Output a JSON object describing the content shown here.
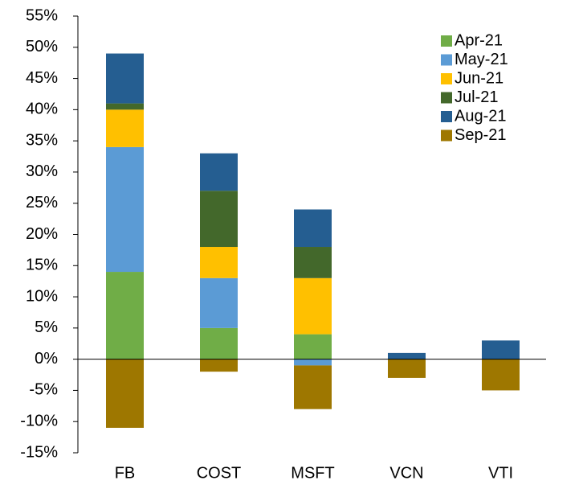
{
  "chart_data": {
    "type": "stacked_bar",
    "categories": [
      "FB",
      "COST",
      "MSFT",
      "VCN",
      "VTI"
    ],
    "series": [
      {
        "name": "Apr-21",
        "color": "#70ad47",
        "values": [
          14,
          5,
          4,
          0,
          0
        ]
      },
      {
        "name": "May-21",
        "color": "#5b9bd5",
        "values": [
          20,
          8,
          -1,
          0,
          0
        ]
      },
      {
        "name": "Jun-21",
        "color": "#ffc000",
        "values": [
          6,
          5,
          9,
          0,
          0
        ]
      },
      {
        "name": "Jul-21",
        "color": "#43682b",
        "values": [
          1,
          9,
          5,
          0,
          0
        ]
      },
      {
        "name": "Aug-21",
        "color": "#255e91",
        "values": [
          8,
          6,
          6,
          1,
          3
        ]
      },
      {
        "name": "Sep-21",
        "color": "#9e7700",
        "values": [
          -11,
          -2,
          -7,
          -3,
          -5
        ]
      }
    ],
    "ylim": [
      -15,
      55
    ],
    "yticks": [
      {
        "value": -15,
        "label": "-15%"
      },
      {
        "value": -10,
        "label": "-10%"
      },
      {
        "value": -5,
        "label": "-5%"
      },
      {
        "value": 0,
        "label": "0%"
      },
      {
        "value": 5,
        "label": "5%"
      },
      {
        "value": 10,
        "label": "10%"
      },
      {
        "value": 15,
        "label": "15%"
      },
      {
        "value": 20,
        "label": "20%"
      },
      {
        "value": 25,
        "label": "25%"
      },
      {
        "value": 30,
        "label": "30%"
      },
      {
        "value": 35,
        "label": "35%"
      },
      {
        "value": 40,
        "label": "40%"
      },
      {
        "value": 45,
        "label": "45%"
      },
      {
        "value": 50,
        "label": "50%"
      },
      {
        "value": 55,
        "label": "55%"
      }
    ],
    "legend": "top-right"
  }
}
